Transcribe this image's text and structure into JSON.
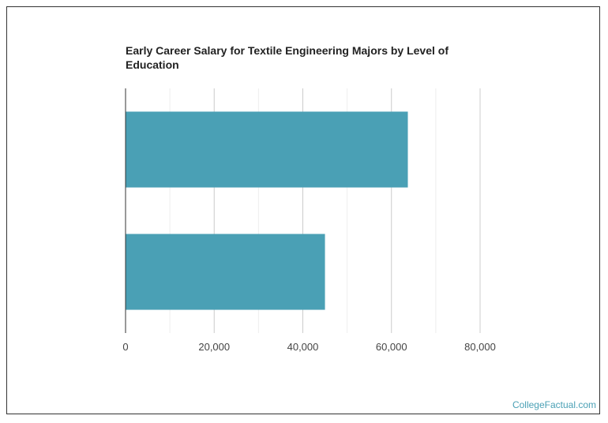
{
  "watermark": "CollegeFactual.com",
  "chart_data": {
    "type": "bar",
    "orientation": "horizontal",
    "title": "Early Career Salary for Textile Engineering Majors by Level of Education",
    "xlabel": "",
    "ylabel": "",
    "categories": [
      "",
      ""
    ],
    "values": [
      63700,
      45000
    ],
    "xlim": [
      0,
      80000
    ],
    "xticks": [
      0,
      20000,
      40000,
      60000,
      80000
    ],
    "tick_labels": [
      "0",
      "20,000",
      "40,000",
      "60,000",
      "80,000"
    ],
    "minor_grid": [
      10000,
      30000,
      50000,
      70000
    ],
    "grid": true,
    "bar_color": "#4aa0b5",
    "legend": "none"
  }
}
